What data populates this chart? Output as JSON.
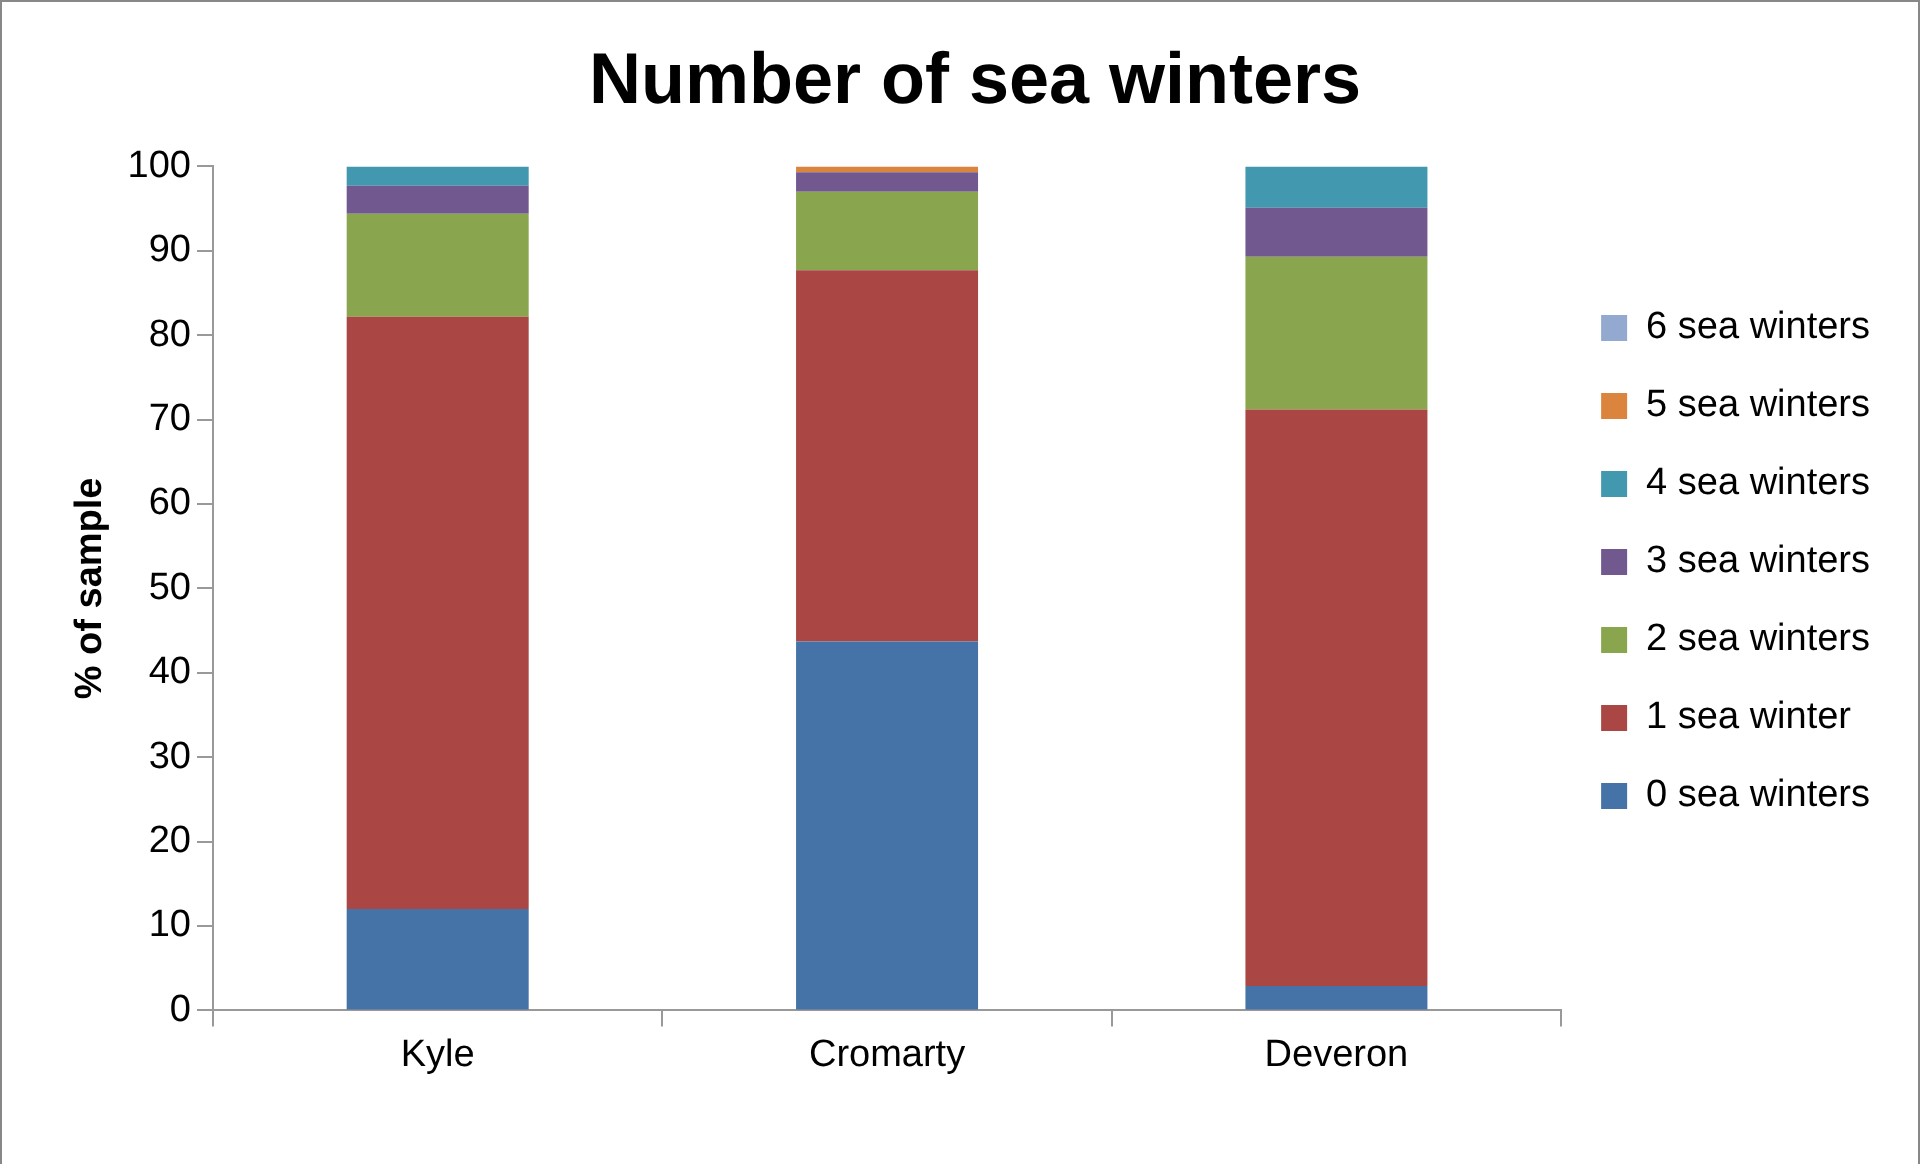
{
  "chart_data": {
    "type": "bar",
    "title": "Number of sea winters",
    "ylabel": "% of sample",
    "categories": [
      "Kyle",
      "Cromarty",
      "Deveron"
    ],
    "stacked": true,
    "ylim": [
      0,
      100
    ],
    "yticks": [
      0,
      10,
      20,
      30,
      40,
      50,
      60,
      70,
      80,
      90,
      100
    ],
    "grid": false,
    "legend": "right",
    "series": [
      {
        "name": "0 sea winters",
        "color": "#4572a7",
        "values": [
          12,
          43.7,
          2.9
        ]
      },
      {
        "name": "1 sea winter",
        "color": "#aa4643",
        "values": [
          70.2,
          44,
          68.3
        ]
      },
      {
        "name": "2 sea winters",
        "color": "#89a54e",
        "values": [
          12.2,
          9.3,
          18.1
        ]
      },
      {
        "name": "3 sea winters",
        "color": "#71588f",
        "values": [
          3.3,
          2.3,
          5.8
        ]
      },
      {
        "name": "4 sea winters",
        "color": "#4198af",
        "values": [
          2.3,
          0,
          4.9
        ]
      },
      {
        "name": "5 sea winters",
        "color": "#db843d",
        "values": [
          0,
          0.7,
          0
        ]
      },
      {
        "name": "6 sea winters",
        "color": "#93a9cf",
        "values": [
          0,
          0,
          0
        ]
      }
    ]
  }
}
